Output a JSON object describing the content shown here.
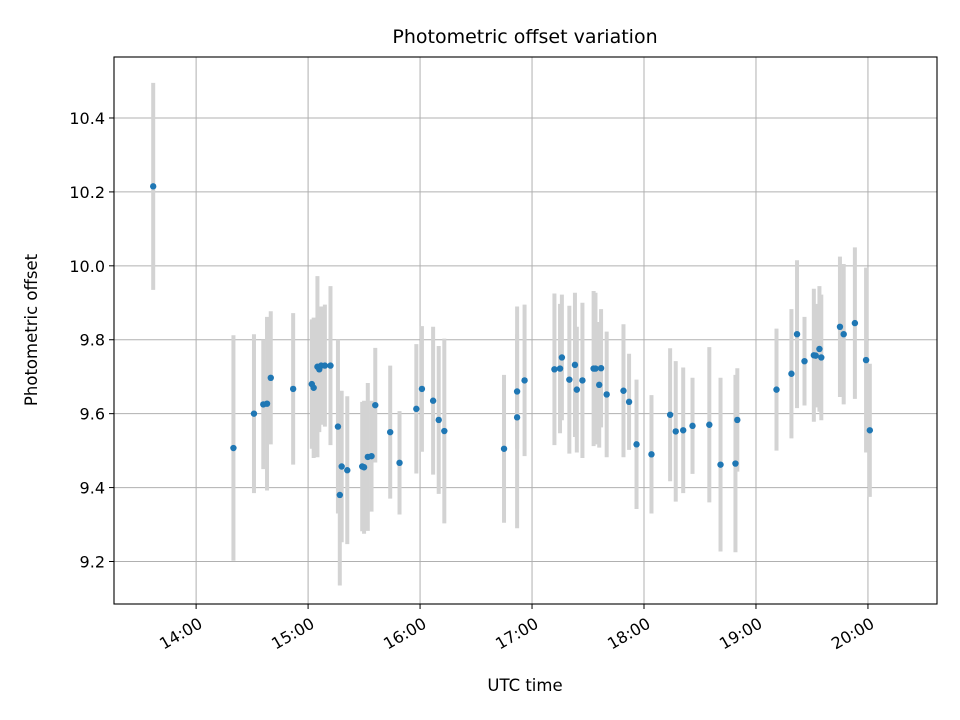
{
  "chart_data": {
    "type": "scatter",
    "title": "Photometric offset variation",
    "xlabel": "UTC time",
    "ylabel": "Photometric offset",
    "x_ticks": [
      "14:00",
      "15:00",
      "16:00",
      "17:00",
      "18:00",
      "19:00",
      "20:00"
    ],
    "y_ticks": [
      "9.2",
      "9.4",
      "9.6",
      "9.8",
      "10.0",
      "10.2",
      "10.4"
    ],
    "xlim": [
      "13:16",
      "20:37"
    ],
    "ylim": [
      9.085,
      10.565
    ],
    "grid": true,
    "marker_color": "#1f77b4",
    "errorbar_color": "#d3d3d3",
    "series": [
      {
        "x": [
          "13:37",
          "14:20",
          "14:31",
          "14:36",
          "14:38",
          "14:40",
          "14:52",
          "15:02",
          "15:03",
          "15:05",
          "15:06",
          "15:07",
          "15:09",
          "15:12",
          "15:16",
          "15:17",
          "15:18",
          "15:21",
          "15:29",
          "15:30",
          "15:32",
          "15:34",
          "15:36",
          "15:44",
          "15:49",
          "15:58",
          "16:01",
          "16:07",
          "16:10",
          "16:13",
          "16:45",
          "16:52",
          "16:52",
          "16:56",
          "17:12",
          "17:15",
          "17:16",
          "17:20",
          "17:23",
          "17:24",
          "17:27",
          "17:33",
          "17:34",
          "17:36",
          "17:37",
          "17:40",
          "17:49",
          "17:52",
          "17:56",
          "18:04",
          "18:14",
          "18:17",
          "18:21",
          "18:26",
          "18:35",
          "18:41",
          "18:49",
          "18:50",
          "19:11",
          "19:19",
          "19:22",
          "19:26",
          "19:31",
          "19:32",
          "19:34",
          "19:35",
          "19:45",
          "19:47",
          "19:53",
          "19:59",
          "20:01"
        ],
        "y": [
          10.215,
          9.507,
          9.6,
          9.625,
          9.627,
          9.697,
          9.667,
          9.68,
          9.67,
          9.727,
          9.72,
          9.73,
          9.73,
          9.73,
          9.565,
          9.38,
          9.457,
          9.447,
          9.457,
          9.455,
          9.483,
          9.485,
          9.623,
          9.55,
          9.467,
          9.613,
          9.667,
          9.635,
          9.583,
          9.553,
          9.505,
          9.59,
          9.66,
          9.69,
          9.72,
          9.722,
          9.752,
          9.692,
          9.732,
          9.665,
          9.69,
          9.722,
          9.722,
          9.678,
          9.723,
          9.652,
          9.662,
          9.632,
          9.517,
          9.49,
          9.597,
          9.552,
          9.555,
          9.567,
          9.57,
          9.462,
          9.465,
          9.583,
          9.665,
          9.708,
          9.815,
          9.742,
          9.758,
          9.757,
          9.775,
          9.752,
          9.835,
          9.815,
          9.845,
          9.745,
          9.555
        ],
        "yerr": [
          0.28,
          0.305,
          0.215,
          0.175,
          0.235,
          0.18,
          0.205,
          0.175,
          0.19,
          0.245,
          0.17,
          0.16,
          0.165,
          0.215,
          0.235,
          0.245,
          0.205,
          0.2,
          0.175,
          0.18,
          0.2,
          0.15,
          0.155,
          0.18,
          0.14,
          0.175,
          0.17,
          0.2,
          0.2,
          0.25,
          0.2,
          0.3,
          0.155,
          0.205,
          0.205,
          0.175,
          0.17,
          0.2,
          0.195,
          0.17,
          0.21,
          0.21,
          0.205,
          0.17,
          0.16,
          0.17,
          0.18,
          0.13,
          0.175,
          0.16,
          0.18,
          0.19,
          0.17,
          0.13,
          0.21,
          0.235,
          0.24,
          0.14,
          0.165,
          0.175,
          0.2,
          0.12,
          0.18,
          0.14,
          0.17,
          0.17,
          0.19,
          0.19,
          0.205,
          0.25,
          0.18
        ]
      }
    ]
  }
}
